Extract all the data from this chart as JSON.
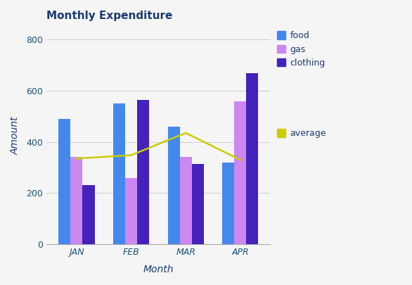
{
  "title": "Monthly Expenditure",
  "xlabel": "Month",
  "ylabel": "Amount",
  "months": [
    "JAN",
    "FEB",
    "MAR",
    "APR"
  ],
  "food": [
    490,
    550,
    460,
    320
  ],
  "gas": [
    340,
    258,
    340,
    560
  ],
  "clothing": [
    232,
    565,
    315,
    668
  ],
  "average": [
    335,
    348,
    435,
    330
  ],
  "food_color": "#4488ee",
  "gas_color": "#cc88ee",
  "clothing_color": "#4422bb",
  "average_color": "#cccc00",
  "title_color": "#1a3a6e",
  "axis_label_color": "#1a3a6e",
  "tick_color": "#1a5276",
  "grid_color": "#cccccc",
  "bg_color": "#f5f5f5",
  "fig_bg_color": "#f5f5f5",
  "ylim": [
    0,
    850
  ],
  "yticks": [
    0,
    200,
    400,
    600,
    800
  ],
  "bar_width": 0.22,
  "title_fontsize": 11,
  "axis_label_fontsize": 10,
  "tick_fontsize": 9,
  "legend_fontsize": 9
}
